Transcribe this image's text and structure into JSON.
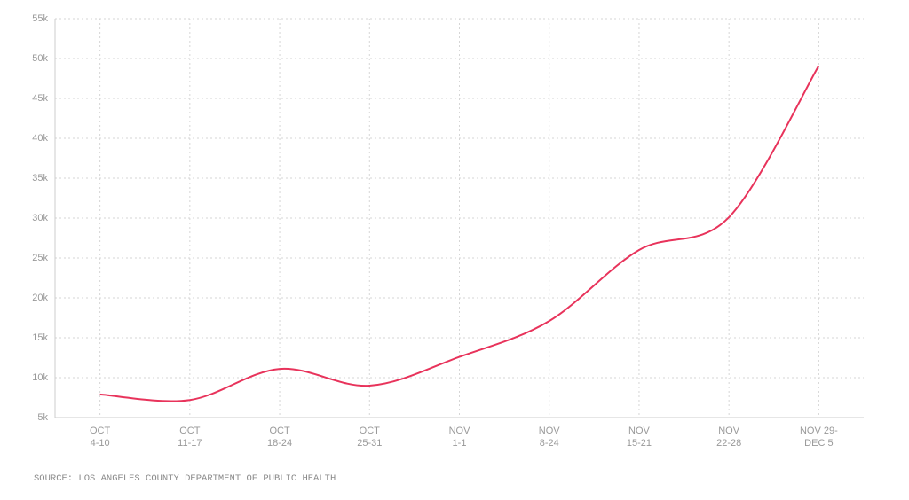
{
  "chart_data": {
    "type": "line",
    "categories": [
      [
        "OCT",
        "4-10"
      ],
      [
        "OCT",
        "11-17"
      ],
      [
        "OCT",
        "18-24"
      ],
      [
        "OCT",
        "25-31"
      ],
      [
        "NOV",
        "1-1"
      ],
      [
        "NOV",
        "8-24"
      ],
      [
        "NOV",
        "15-21"
      ],
      [
        "NOV",
        "22-28"
      ],
      [
        "NOV 29-",
        "DEC 5"
      ]
    ],
    "series": [
      {
        "color": "#e8335b",
        "values": [
          7900,
          7200,
          11100,
          9000,
          12600,
          17100,
          26000,
          30100,
          49100
        ]
      }
    ],
    "ylim": [
      5000,
      55000
    ],
    "yticks": [
      {
        "value": 5000,
        "label": "5k"
      },
      {
        "value": 10000,
        "label": "10k"
      },
      {
        "value": 15000,
        "label": "15k"
      },
      {
        "value": 20000,
        "label": "20k"
      },
      {
        "value": 25000,
        "label": "25k"
      },
      {
        "value": 30000,
        "label": "30k"
      },
      {
        "value": 35000,
        "label": "35k"
      },
      {
        "value": 40000,
        "label": "40k"
      },
      {
        "value": 45000,
        "label": "45k"
      },
      {
        "value": 50000,
        "label": "50k"
      },
      {
        "value": 55000,
        "label": "55k"
      }
    ],
    "grid": true,
    "source": "SOURCE: LOS ANGELES COUNTY DEPARTMENT OF PUBLIC HEALTH"
  }
}
